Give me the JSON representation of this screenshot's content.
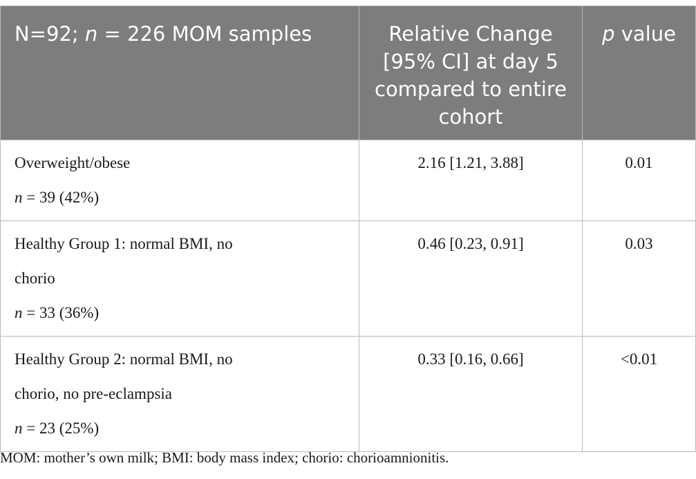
{
  "table": {
    "headers": {
      "col1_prefix": "N=92; ",
      "col1_italic": "n",
      "col1_suffix": " = 226 MOM samples",
      "col2": "Relative Change [95% CI] at day 5 compared to entire cohort",
      "col3_italic": "p",
      "col3_suffix": " value"
    },
    "rows": [
      {
        "group_lines": [
          "Overweight/obese"
        ],
        "n_italic": "n",
        "n_text": " = 39 (42%)",
        "relative_change": "2.16 [1.21, 3.88]",
        "p_value": "0.01"
      },
      {
        "group_lines": [
          "Healthy Group 1: normal BMI, no",
          "chorio"
        ],
        "n_italic": "n",
        "n_text": " = 33 (36%)",
        "relative_change": "0.46 [0.23, 0.91]",
        "p_value": "0.03"
      },
      {
        "group_lines": [
          "Healthy Group 2: normal BMI, no",
          "chorio, no pre-eclampsia"
        ],
        "n_italic": "n",
        "n_text": " = 23 (25%)",
        "relative_change": "0.33 [0.16, 0.66]",
        "p_value": "<0.01"
      }
    ]
  },
  "footnote": "MOM: mother’s own milk; BMI: body mass index; chorio: chorioamnionitis."
}
